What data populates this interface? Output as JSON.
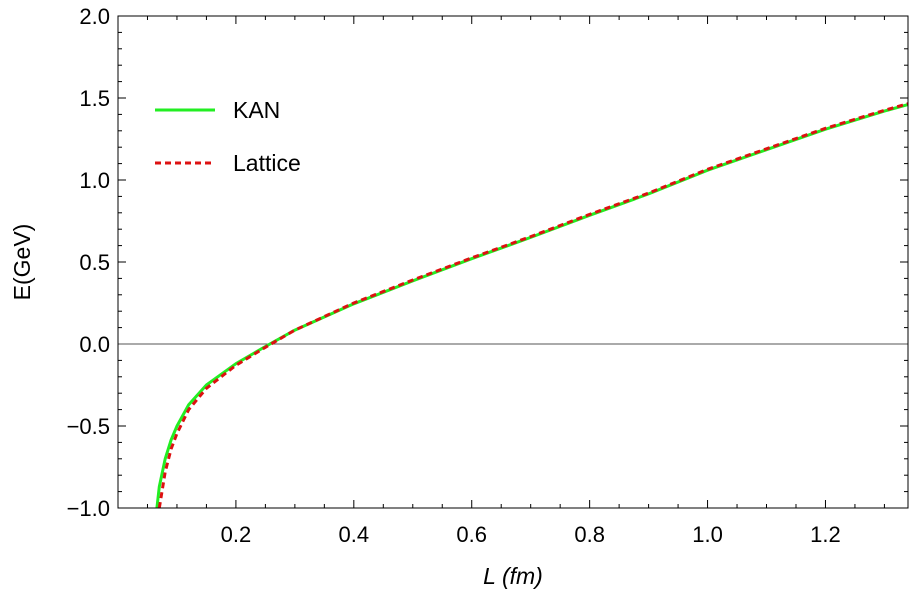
{
  "chart_data": {
    "type": "line",
    "title": "",
    "xlabel": "L (fm)",
    "ylabel": "E(GeV)",
    "xlim": [
      0,
      1.34
    ],
    "ylim": [
      -1.0,
      2.0
    ],
    "x_ticks": [
      {
        "value": 0.2,
        "label": "0.2"
      },
      {
        "value": 0.4,
        "label": "0.4"
      },
      {
        "value": 0.6,
        "label": "0.6"
      },
      {
        "value": 0.8,
        "label": "0.8"
      },
      {
        "value": 1.0,
        "label": "1.0"
      },
      {
        "value": 1.2,
        "label": "1.2"
      }
    ],
    "y_ticks": [
      {
        "value": -1.0,
        "label": "−1.0"
      },
      {
        "value": -0.5,
        "label": "−0.5"
      },
      {
        "value": 0.0,
        "label": "0.0"
      },
      {
        "value": 0.5,
        "label": "0.5"
      },
      {
        "value": 1.0,
        "label": "1.0"
      },
      {
        "value": 1.5,
        "label": "1.5"
      },
      {
        "value": 2.0,
        "label": "2.0"
      }
    ],
    "zero_line": true,
    "grid": false,
    "legend_position": "top-left",
    "series": [
      {
        "name": "KAN",
        "color": "#22ee22",
        "style": "solid",
        "x": [
          0.066,
          0.07,
          0.08,
          0.09,
          0.1,
          0.12,
          0.15,
          0.2,
          0.25,
          0.3,
          0.4,
          0.5,
          0.6,
          0.7,
          0.8,
          0.9,
          1.0,
          1.1,
          1.2,
          1.3,
          1.34
        ],
        "y": [
          -1.0,
          -0.87,
          -0.7,
          -0.585,
          -0.5,
          -0.37,
          -0.25,
          -0.12,
          -0.015,
          0.085,
          0.245,
          0.385,
          0.52,
          0.65,
          0.785,
          0.915,
          1.06,
          1.185,
          1.31,
          1.42,
          1.46
        ]
      },
      {
        "name": "Lattice",
        "color": "#dd1111",
        "style": "dashed",
        "x": [
          0.07,
          0.08,
          0.09,
          0.1,
          0.12,
          0.15,
          0.2,
          0.25,
          0.3,
          0.4,
          0.5,
          0.6,
          0.7,
          0.8,
          0.9,
          1.0,
          1.1,
          1.2,
          1.3,
          1.34
        ],
        "y": [
          -1.0,
          -0.78,
          -0.64,
          -0.545,
          -0.4,
          -0.27,
          -0.13,
          -0.02,
          0.085,
          0.25,
          0.39,
          0.525,
          0.655,
          0.79,
          0.92,
          1.065,
          1.19,
          1.315,
          1.425,
          1.465
        ]
      }
    ]
  }
}
